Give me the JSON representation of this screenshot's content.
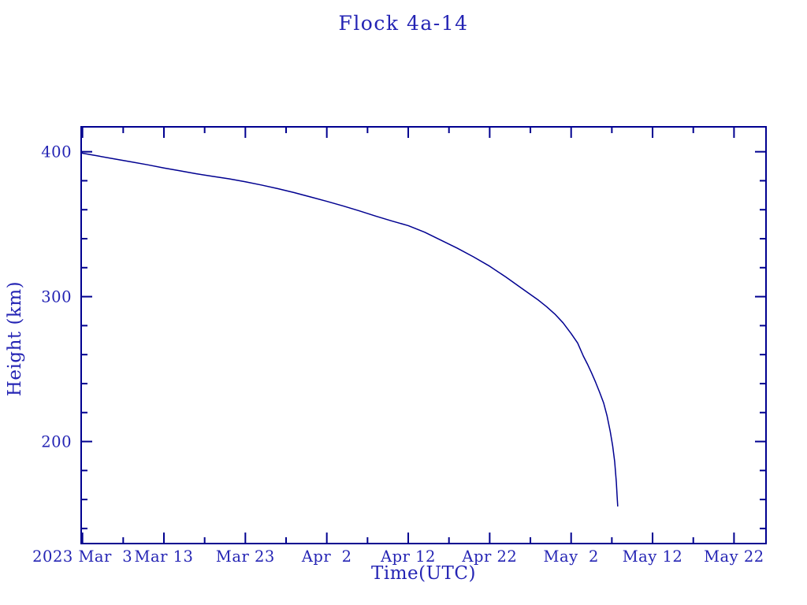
{
  "chart_data": {
    "type": "line",
    "title": "Flock 4a-14",
    "xlabel": "Time(UTC)",
    "ylabel": "Height (km)",
    "x_unit": "days since 2023 Mar 3 (UTC)",
    "x_domain_days": [
      -0.16,
      83.93
    ],
    "y_domain_km": [
      129.6,
      417.2
    ],
    "x_ticks_major": [
      {
        "label": "2023 Mar  3",
        "day": 0
      },
      {
        "label": "Mar 13",
        "day": 10
      },
      {
        "label": "Mar 23",
        "day": 20
      },
      {
        "label": "Apr  2",
        "day": 30
      },
      {
        "label": "Apr 12",
        "day": 40
      },
      {
        "label": "Apr 22",
        "day": 50
      },
      {
        "label": "May  2",
        "day": 60
      },
      {
        "label": "May 12",
        "day": 70
      },
      {
        "label": "May 22",
        "day": 80
      }
    ],
    "x_ticks_minor_days": [
      5,
      15,
      25,
      35,
      45,
      55,
      65,
      75
    ],
    "y_ticks_major": [
      {
        "label": "400",
        "km": 400
      },
      {
        "label": "300",
        "km": 300
      },
      {
        "label": "200",
        "km": 200
      }
    ],
    "y_ticks_minor_km": [
      140,
      160,
      180,
      220,
      240,
      260,
      280,
      320,
      340,
      360,
      380
    ],
    "grid": false,
    "legend": false,
    "series": [
      {
        "name": "Flock 4a-14 orbital height",
        "points_day_km": [
          [
            -0.15,
            399.3
          ],
          [
            0,
            399
          ],
          [
            2,
            397
          ],
          [
            4,
            395
          ],
          [
            6,
            393
          ],
          [
            8,
            391
          ],
          [
            10,
            388.8
          ],
          [
            12,
            386.8
          ],
          [
            14,
            384.8
          ],
          [
            16,
            383
          ],
          [
            18,
            381.3
          ],
          [
            20,
            379.3
          ],
          [
            22,
            377
          ],
          [
            24,
            374.5
          ],
          [
            26,
            371.8
          ],
          [
            28,
            368.8
          ],
          [
            30,
            365.8
          ],
          [
            32,
            362.6
          ],
          [
            34,
            359.2
          ],
          [
            36,
            355.6
          ],
          [
            38,
            352.2
          ],
          [
            40,
            349
          ],
          [
            42,
            344.5
          ],
          [
            44,
            339
          ],
          [
            46,
            333.5
          ],
          [
            48,
            327.5
          ],
          [
            50,
            321
          ],
          [
            52,
            313.5
          ],
          [
            54,
            305.5
          ],
          [
            56,
            297.5
          ],
          [
            57,
            293
          ],
          [
            58,
            288
          ],
          [
            59,
            282
          ],
          [
            60,
            274.5
          ],
          [
            60.8,
            268
          ],
          [
            61.5,
            259
          ],
          [
            62,
            253.5
          ],
          [
            62.5,
            247.5
          ],
          [
            63,
            241
          ],
          [
            63.5,
            234
          ],
          [
            64,
            226.5
          ],
          [
            64.4,
            218
          ],
          [
            64.8,
            207
          ],
          [
            65.1,
            197
          ],
          [
            65.35,
            186
          ],
          [
            65.55,
            172
          ],
          [
            65.65,
            162
          ],
          [
            65.72,
            155.5
          ]
        ]
      }
    ],
    "colors": {
      "background": "#ffffff",
      "text": "#2424b4",
      "axis": "#000090",
      "line": "#000090"
    }
  }
}
